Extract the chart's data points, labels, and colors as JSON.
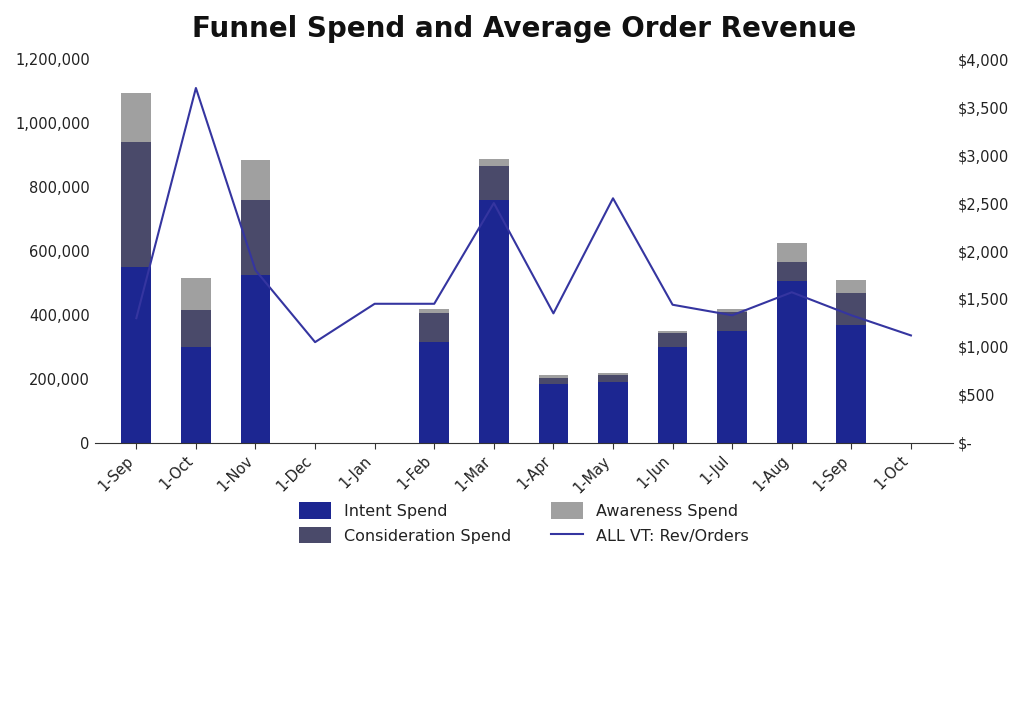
{
  "title": "Funnel Spend and Average Order Revenue",
  "categories": [
    "1-Sep",
    "1-Oct",
    "1-Nov",
    "1-Dec",
    "1-Jan",
    "1-Feb",
    "1-Mar",
    "1-Apr",
    "1-May",
    "1-Jun",
    "1-Jul",
    "1-Aug",
    "1-Sep",
    "1-Oct"
  ],
  "intent_spend": [
    550000,
    300000,
    525000,
    0,
    0,
    315000,
    760000,
    185000,
    190000,
    300000,
    350000,
    505000,
    370000,
    0
  ],
  "consideration_spend": [
    390000,
    115000,
    235000,
    0,
    0,
    90000,
    105000,
    18000,
    22000,
    45000,
    60000,
    60000,
    100000,
    0
  ],
  "awareness_spend": [
    155000,
    100000,
    125000,
    0,
    0,
    15000,
    22000,
    8000,
    5000,
    5000,
    10000,
    60000,
    40000,
    0
  ],
  "rev_orders": [
    1300,
    3700,
    1800,
    1050,
    1450,
    1450,
    2500,
    1350,
    2550,
    1440,
    1330,
    1570,
    1330,
    1120
  ],
  "intent_color": "#1c2691",
  "consideration_color": "#4a4a6a",
  "awareness_color": "#a0a0a0",
  "line_color": "#3535a0",
  "ylim_left": [
    0,
    1200000
  ],
  "ylim_right": [
    0,
    4000
  ],
  "background_color": "#ffffff",
  "title_fontsize": 20,
  "tick_fontsize": 10.5,
  "legend_fontsize": 11.5
}
